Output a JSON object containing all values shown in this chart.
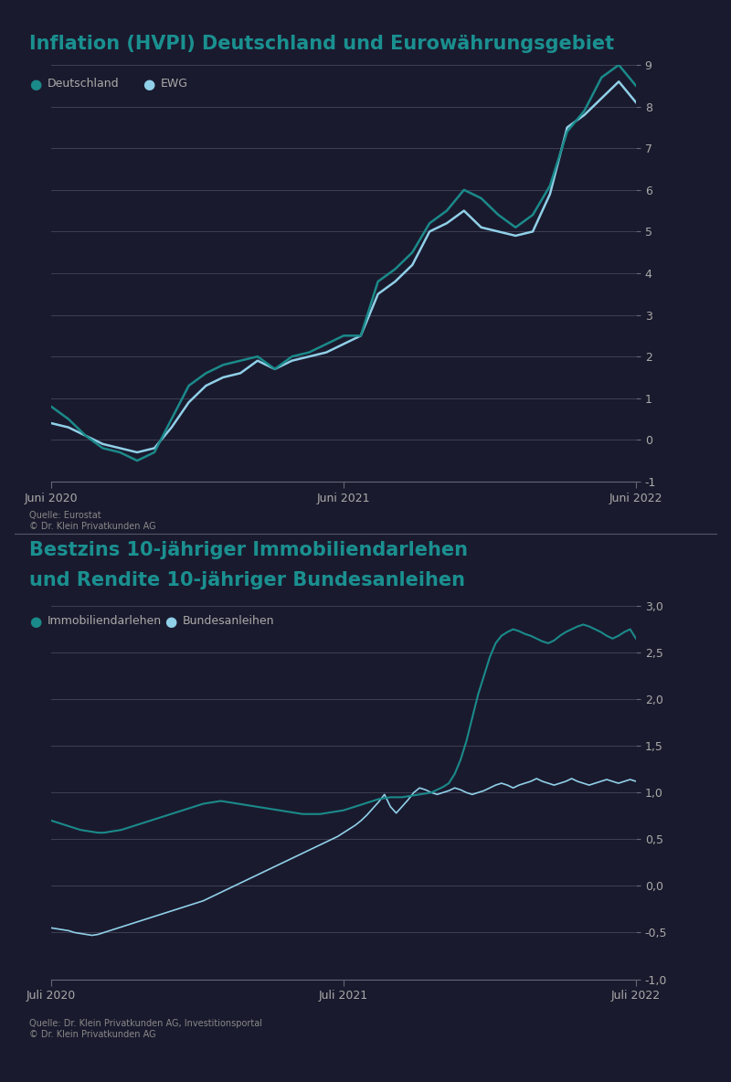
{
  "chart1_title": "Inflation (HVPI) Deutschland und Eurowährungsgebiet",
  "chart1_legend": [
    "Deutschland",
    "EWG"
  ],
  "chart1_xlabel_ticks": [
    "Juni 2020",
    "Juni 2021",
    "Juni 2022"
  ],
  "chart1_ylim": [
    -1,
    9
  ],
  "chart1_yticks": [
    -1,
    0,
    1,
    2,
    3,
    4,
    5,
    6,
    7,
    8,
    9
  ],
  "chart1_source_line1": "Quelle: Eurostat",
  "chart1_source_line2": "© Dr. Klein Privatkunden AG",
  "chart2_title_line1": "Bestzins 10-jähriger Immobiliendarlehen",
  "chart2_title_line2": "und Rendite 10-jähriger Bundesanleihen",
  "chart2_legend": [
    "Immobiliendarlehen",
    "Bundesanleihen"
  ],
  "chart2_xlabel_ticks": [
    "Juli 2020",
    "Juli 2021",
    "Juli 2022"
  ],
  "chart2_ylim": [
    -1.0,
    3.0
  ],
  "chart2_yticks": [
    -1.0,
    -0.5,
    0.0,
    0.5,
    1.0,
    1.5,
    2.0,
    2.5,
    3.0
  ],
  "chart2_source_line1": "Quelle: Dr. Klein Privatkunden AG, Investitionsportal",
  "chart2_source_line2": "© Dr. Klein Privatkunden AG",
  "color_dark_teal": "#1a8a8a",
  "color_light_blue": "#90d0e8",
  "background_color": "#1a1a2e",
  "text_color": "#aaaaaa",
  "title_color": "#1a9090",
  "grid_color": "#404055",
  "axis_color": "#666677",
  "source_color": "#888888",
  "separator_color": "#555566",
  "chart1_de_y": [
    0.8,
    0.5,
    0.1,
    -0.2,
    -0.3,
    -0.5,
    -0.3,
    0.5,
    1.3,
    1.6,
    1.8,
    1.9,
    2.0,
    1.7,
    2.0,
    2.1,
    2.3,
    2.5,
    2.5,
    3.8,
    4.1,
    4.5,
    5.2,
    5.5,
    6.0,
    5.8,
    5.4,
    5.1,
    5.4,
    6.1,
    7.4,
    7.9,
    8.7,
    9.0,
    8.5
  ],
  "chart1_ewg_y": [
    0.4,
    0.3,
    0.1,
    -0.1,
    -0.2,
    -0.3,
    -0.2,
    0.3,
    0.9,
    1.3,
    1.5,
    1.6,
    1.9,
    1.7,
    1.9,
    2.0,
    2.1,
    2.3,
    2.5,
    3.5,
    3.8,
    4.2,
    5.0,
    5.2,
    5.5,
    5.1,
    5.0,
    4.9,
    5.0,
    5.9,
    7.5,
    7.8,
    8.2,
    8.6,
    8.1
  ],
  "chart2_immo_y": [
    0.7,
    0.68,
    0.66,
    0.64,
    0.62,
    0.6,
    0.59,
    0.58,
    0.57,
    0.57,
    0.58,
    0.59,
    0.6,
    0.62,
    0.64,
    0.66,
    0.68,
    0.7,
    0.72,
    0.74,
    0.76,
    0.78,
    0.8,
    0.82,
    0.84,
    0.86,
    0.88,
    0.89,
    0.9,
    0.91,
    0.9,
    0.89,
    0.88,
    0.87,
    0.86,
    0.85,
    0.84,
    0.83,
    0.82,
    0.81,
    0.8,
    0.79,
    0.78,
    0.77,
    0.77,
    0.77,
    0.77,
    0.78,
    0.79,
    0.8,
    0.81,
    0.83,
    0.85,
    0.87,
    0.89,
    0.91,
    0.93,
    0.94,
    0.95,
    0.95,
    0.95,
    0.96,
    0.97,
    0.98,
    0.99,
    1.0,
    1.03,
    1.06,
    1.1,
    1.2,
    1.35,
    1.55,
    1.8,
    2.05,
    2.25,
    2.45,
    2.6,
    2.68,
    2.72,
    2.75,
    2.73,
    2.7,
    2.68,
    2.65,
    2.62,
    2.6,
    2.63,
    2.68,
    2.72,
    2.75,
    2.78,
    2.8,
    2.78,
    2.75,
    2.72,
    2.68,
    2.65,
    2.68,
    2.72,
    2.75,
    2.65
  ],
  "chart2_bund_y": [
    -0.45,
    -0.46,
    -0.47,
    -0.48,
    -0.5,
    -0.51,
    -0.52,
    -0.53,
    -0.52,
    -0.5,
    -0.48,
    -0.46,
    -0.44,
    -0.42,
    -0.4,
    -0.38,
    -0.36,
    -0.34,
    -0.32,
    -0.3,
    -0.28,
    -0.26,
    -0.24,
    -0.22,
    -0.2,
    -0.18,
    -0.16,
    -0.13,
    -0.1,
    -0.07,
    -0.04,
    -0.01,
    0.02,
    0.05,
    0.08,
    0.11,
    0.14,
    0.17,
    0.2,
    0.23,
    0.26,
    0.29,
    0.32,
    0.35,
    0.38,
    0.41,
    0.44,
    0.47,
    0.5,
    0.53,
    0.57,
    0.61,
    0.65,
    0.7,
    0.76,
    0.83,
    0.9,
    0.98,
    0.85,
    0.78,
    0.85,
    0.92,
    1.0,
    1.05,
    1.03,
    1.0,
    0.98,
    1.0,
    1.02,
    1.05,
    1.03,
    1.0,
    0.98,
    1.0,
    1.02,
    1.05,
    1.08,
    1.1,
    1.08,
    1.05,
    1.08,
    1.1,
    1.12,
    1.15,
    1.12,
    1.1,
    1.08,
    1.1,
    1.12,
    1.15,
    1.12,
    1.1,
    1.08,
    1.1,
    1.12,
    1.14,
    1.12,
    1.1,
    1.12,
    1.14,
    1.12
  ]
}
